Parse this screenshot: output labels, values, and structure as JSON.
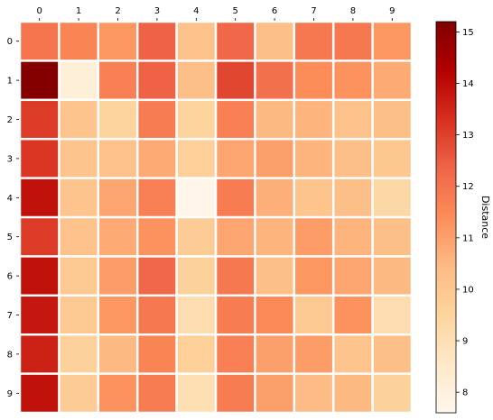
{
  "chart_data": {
    "type": "heatmap",
    "title": "",
    "x_categories": [
      "0",
      "1",
      "2",
      "3",
      "4",
      "5",
      "6",
      "7",
      "8",
      "9"
    ],
    "y_categories": [
      "0",
      "1",
      "2",
      "3",
      "4",
      "5",
      "6",
      "7",
      "8",
      "9"
    ],
    "x_axis_position": "top",
    "colormap": "OrRd",
    "colorbar": {
      "label": "Distance",
      "min": 7.6,
      "max": 15.2,
      "ticks": [
        "8",
        "9",
        "10",
        "11",
        "12",
        "13",
        "14",
        "15"
      ],
      "position": "right"
    },
    "grid": false,
    "values": [
      [
        12.0,
        11.6,
        11.2,
        12.4,
        10.2,
        12.3,
        10.3,
        11.9,
        11.9,
        11.2
      ],
      [
        15.1,
        8.1,
        11.7,
        12.4,
        10.3,
        12.9,
        12.1,
        11.4,
        11.3,
        10.8
      ],
      [
        13.1,
        10.1,
        9.5,
        11.8,
        9.5,
        11.7,
        10.5,
        10.6,
        10.2,
        10.3
      ],
      [
        13.2,
        10.1,
        10.2,
        10.8,
        9.7,
        10.9,
        11.0,
        10.6,
        10.3,
        10.0
      ],
      [
        13.9,
        10.1,
        10.9,
        11.7,
        7.7,
        11.8,
        10.7,
        10.1,
        10.3,
        9.3
      ],
      [
        13.1,
        10.2,
        10.8,
        11.3,
        9.8,
        10.9,
        10.6,
        11.1,
        10.6,
        10.3
      ],
      [
        13.9,
        9.9,
        11.1,
        12.3,
        9.6,
        11.9,
        10.3,
        11.2,
        10.9,
        10.5
      ],
      [
        13.8,
        9.9,
        11.2,
        11.9,
        9.1,
        11.8,
        11.5,
        9.9,
        11.3,
        9.1
      ],
      [
        13.6,
        9.6,
        10.5,
        11.6,
        9.7,
        11.7,
        11.0,
        11.1,
        10.1,
        10.3
      ],
      [
        13.9,
        9.8,
        11.3,
        11.8,
        9.0,
        11.8,
        11.0,
        10.4,
        10.5,
        9.6
      ]
    ]
  }
}
